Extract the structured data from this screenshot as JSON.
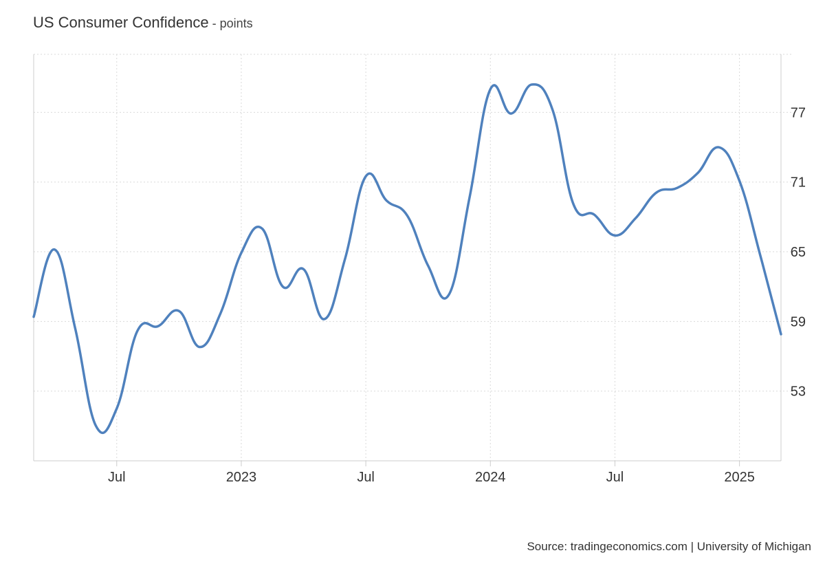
{
  "title": "US Consumer Confidence",
  "unit_suffix": " - points",
  "source": "Source: tradingeconomics.com | University of Michigan",
  "colors": {
    "line": "#4f81bd",
    "grid": "#d9d9d9",
    "axis": "#cccccc",
    "text": "#333333"
  },
  "chart_data": {
    "type": "line",
    "title": "US Consumer Confidence",
    "ylabel": "points",
    "xlabel": "",
    "grid": true,
    "legend": "none",
    "x_tick_labels": [
      "Jul",
      "2023",
      "Jul",
      "2024",
      "Jul",
      "2025"
    ],
    "x_ticks": [
      "2022-07",
      "2023-01",
      "2023-07",
      "2024-01",
      "2024-07",
      "2025-01"
    ],
    "y_ticks": [
      53,
      59,
      65,
      71,
      77
    ],
    "ylim": [
      47,
      82
    ],
    "xlim": [
      "2022-03",
      "2025-03"
    ],
    "series": [
      {
        "x": [
          "2022-03",
          "2022-04",
          "2022-05",
          "2022-06",
          "2022-07",
          "2022-08",
          "2022-09",
          "2022-10",
          "2022-11",
          "2022-12",
          "2023-01",
          "2023-02",
          "2023-03",
          "2023-04",
          "2023-05",
          "2023-06",
          "2023-07",
          "2023-08",
          "2023-09",
          "2023-10",
          "2023-11",
          "2023-12",
          "2024-01",
          "2024-02",
          "2024-03",
          "2024-04",
          "2024-05",
          "2024-06",
          "2024-07",
          "2024-08",
          "2024-09",
          "2024-10",
          "2024-11",
          "2024-12",
          "2025-01",
          "2025-02",
          "2025-03"
        ],
        "values": [
          59.4,
          65.2,
          58.4,
          50.0,
          51.5,
          58.2,
          58.6,
          59.9,
          56.8,
          59.7,
          64.9,
          67.0,
          62.0,
          63.5,
          59.2,
          64.4,
          71.5,
          69.4,
          68.1,
          63.8,
          61.3,
          69.7,
          79.0,
          76.9,
          79.4,
          77.2,
          69.1,
          68.2,
          66.4,
          67.9,
          70.1,
          70.5,
          71.8,
          74.0,
          71.1,
          64.7,
          57.9
        ]
      }
    ]
  }
}
